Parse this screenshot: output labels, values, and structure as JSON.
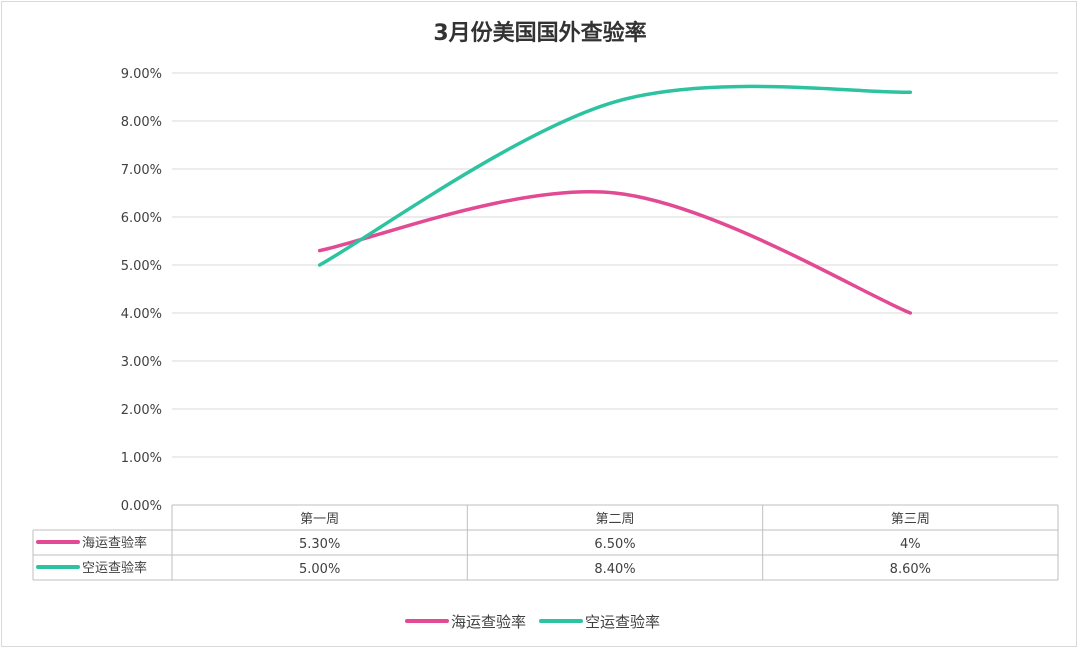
{
  "chart_data": {
    "type": "line",
    "title": "3月份美国国外查验率",
    "categories": [
      "第一周",
      "第二周",
      "第三周"
    ],
    "series": [
      {
        "name": "海运查验率",
        "values": [
          5.3,
          6.5,
          4.0
        ],
        "labels": [
          "5.30%",
          "6.50%",
          "4%"
        ],
        "color": "#e24a93"
      },
      {
        "name": "空运查验率",
        "values": [
          5.0,
          8.4,
          8.6
        ],
        "labels": [
          "5.00%",
          "8.40%",
          "8.60%"
        ],
        "color": "#2ec3a0"
      }
    ],
    "ylim": [
      0,
      9
    ],
    "yticks": [
      "0.00%",
      "1.00%",
      "2.00%",
      "3.00%",
      "4.00%",
      "5.00%",
      "6.00%",
      "7.00%",
      "8.00%",
      "9.00%"
    ],
    "grid": true,
    "legend": "bottom-center",
    "data_table": true
  }
}
